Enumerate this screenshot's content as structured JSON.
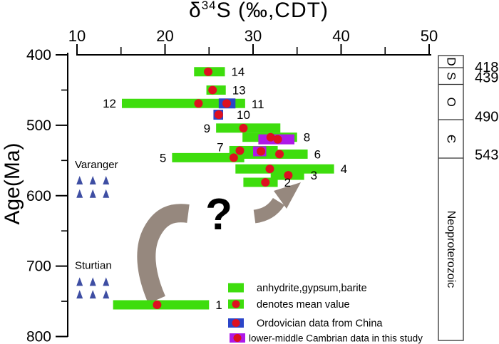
{
  "title": {
    "delta": "δ",
    "isotope": "34",
    "rest": "S (‰,CDT)"
  },
  "y_axis_label": "Age(Ma)",
  "axes": {
    "x": {
      "min": 10,
      "max": 50,
      "major_ticks": [
        10,
        20,
        30,
        40,
        50
      ],
      "minor_ticks": [
        15,
        25,
        35,
        45
      ],
      "unit": "‰ CDT"
    },
    "y": {
      "min": 400,
      "max": 800,
      "major_ticks": [
        400,
        500,
        600,
        700,
        800
      ],
      "minor_ticks": [
        450,
        550,
        650,
        750
      ],
      "unit": "Ma"
    }
  },
  "chart_data": {
    "type": "bar",
    "title": "δ34S (‰,CDT) of evaporites versus age (Ma)",
    "xlabel": "δ34S (‰,CDT)",
    "ylabel": "Age(Ma)",
    "xlim": [
      10,
      50
    ],
    "ylim": [
      400,
      800
    ],
    "grid": false,
    "series": [
      {
        "label": "1",
        "age_ma": 755,
        "d34s_range": [
          14.1,
          25.0
        ],
        "mean": 19.1,
        "label_side": "right"
      },
      {
        "label": "2",
        "age_ma": 581,
        "d34s_range": [
          28.9,
          32.8
        ],
        "mean": 31.4,
        "label_side": "right"
      },
      {
        "label": "3",
        "age_ma": 571,
        "d34s_range": [
          32.0,
          35.8
        ],
        "mean": 34.0,
        "label_side": "right"
      },
      {
        "label": "4",
        "age_ma": 562,
        "d34s_range": [
          28.0,
          39.2
        ],
        "mean": 31.9,
        "label_side": "right"
      },
      {
        "label": "5",
        "age_ma": 546,
        "d34s_range": [
          20.8,
          29.0
        ],
        "mean": 27.8,
        "label_side": "left"
      },
      {
        "label": "6",
        "age_ma": 541,
        "d34s_range": [
          28.0,
          36.2
        ],
        "mean": 33.0,
        "label_side": "right"
      },
      {
        "label": "7",
        "age_ma": 536,
        "d34s_range": [
          27.3,
          32.8
        ],
        "mean": 28.5,
        "label_side": "left",
        "label_dy": -5,
        "purple_overlay": {
          "age_ma": 537,
          "d34s_range": [
            30.0,
            31.5
          ],
          "mean": 30.9
        }
      },
      {
        "label": "8",
        "age_ma": 517,
        "d34s_range": [
          28.8,
          35.0
        ],
        "mean": 32.0,
        "label_side": "right",
        "purple_overlay": {
          "age_ma": 520,
          "d34s_range": [
            30.6,
            34.7
          ],
          "mean": 32.8
        }
      },
      {
        "label": "9",
        "age_ma": 504,
        "d34s_range": [
          25.8,
          33.1
        ],
        "mean": 28.9,
        "label_side": "left"
      },
      {
        "label": "10",
        "age_ma": 485,
        "label_side": "right",
        "label_dx": 10,
        "blue_overlay": {
          "d34s_range": [
            25.5,
            26.6
          ],
          "mean": 26.1
        }
      },
      {
        "label": "12",
        "age_ma": 469,
        "d34s_range": [
          15.1,
          29.1
        ],
        "mean": 23.8,
        "label_side": "left",
        "label2": "11",
        "blue_overlay": {
          "d34s_range": [
            26.1,
            28.0
          ],
          "mean": 27.0
        }
      },
      {
        "label": "13",
        "age_ma": 450,
        "d34s_range": [
          24.7,
          26.9
        ],
        "mean": 25.4,
        "label_side": "right"
      },
      {
        "label": "14",
        "age_ma": 424,
        "d34s_range": [
          23.3,
          26.8
        ],
        "mean": 24.9,
        "label_side": "right"
      }
    ],
    "glaciations": [
      {
        "name": "Varanger",
        "label_age": 556,
        "triangle_row_ages": [
          578,
          597
        ],
        "triangle_d34s": [
          10.3,
          11.8,
          13.3
        ]
      },
      {
        "name": "Sturtian",
        "label_age": 699,
        "triangle_row_ages": [
          722,
          740
        ],
        "triangle_d34s": [
          10.3,
          11.8,
          13.3
        ]
      }
    ],
    "annotations": {
      "question_mark": "?"
    }
  },
  "legend": {
    "items": [
      {
        "swatch": "green",
        "label": "anhydrite,gypsum,barite"
      },
      {
        "swatch": "green-dot",
        "label": "denotes mean value"
      },
      {
        "swatch": "blue-dot",
        "label": "Ordovician data from China"
      },
      {
        "swatch": "purple-dot",
        "label": "lower-middle Cambrian data in this study"
      }
    ]
  },
  "strat_column": {
    "cells": [
      {
        "label": "D"
      },
      {
        "label": "S"
      },
      {
        "label": "O"
      },
      {
        "label": "Є"
      },
      {
        "label": "Neoproterozoic"
      }
    ],
    "boundary_ages": [
      "418",
      "439",
      "490",
      "543"
    ]
  },
  "colors": {
    "green": "#3EDD0D",
    "red": "#DE1020",
    "blue": "#2B45C8",
    "purple": "#AE19E8",
    "triangle_blue": "#3E4EA3",
    "gray": "#96887E",
    "black": "#000000"
  }
}
